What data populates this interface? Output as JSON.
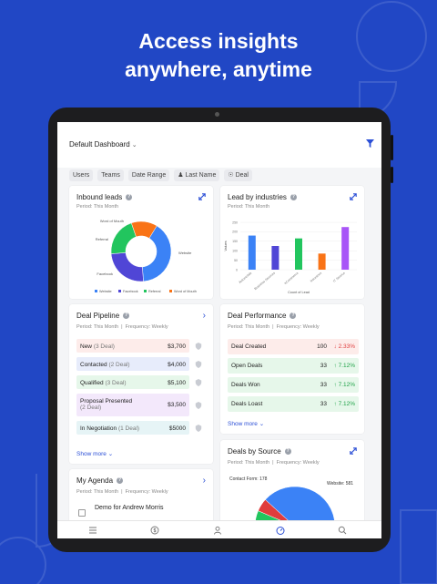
{
  "headline": {
    "line1": "Access insights",
    "line2": "anywhere, anytime"
  },
  "colors": {
    "background": "#2147c5",
    "accent": "#2b4fd6",
    "website": "#3b82f6",
    "facebook": "#5046d6",
    "referral": "#22c55e",
    "word_of_mouth": "#f97316",
    "bar_purple": "#a855f7"
  },
  "dashboard": {
    "title": "Default Dashboard",
    "filters": [
      "Users",
      "Teams",
      "Date Range",
      "Last Name",
      "Deal"
    ]
  },
  "inbound": {
    "title": "Inbound leads",
    "period": "Period: This Month",
    "slice_labels": [
      "Word of Mouth",
      "Referral",
      "Facebook",
      "Website"
    ],
    "legend": [
      "Website",
      "Facebook",
      "Referral",
      "Word of Mouth"
    ]
  },
  "industries": {
    "title": "Lead by industries",
    "period": "Period: This Month",
    "ylabel": "Values",
    "xlabel": "Count of Lead"
  },
  "pipeline": {
    "title": "Deal Pipeline",
    "period": "Period: This Month",
    "frequency": "Frequency: Weekly",
    "rows": [
      {
        "label": "New",
        "count": "(3 Deal)",
        "amount": "$3,700"
      },
      {
        "label": "Contacted",
        "count": "(2 Deal)",
        "amount": "$4,000"
      },
      {
        "label": "Qualified",
        "count": "(3 Deal)",
        "amount": "$5,100"
      },
      {
        "label": "Proposal Presented",
        "count": "(2 Deal)",
        "amount": "$3,500"
      },
      {
        "label": "In Negotiation",
        "count": "(1 Deal)",
        "amount": "$5000"
      }
    ],
    "show_more": "Show more"
  },
  "performance": {
    "title": "Deal Performance",
    "period": "Period: This Month",
    "frequency": "Frequency: Weekly",
    "rows": [
      {
        "label": "Deal Created",
        "value": "100",
        "change": "2.33%",
        "direction": "down"
      },
      {
        "label": "Open Deals",
        "value": "33",
        "change": "7.12%",
        "direction": "up"
      },
      {
        "label": "Deals Won",
        "value": "33",
        "change": "7.12%",
        "direction": "up"
      },
      {
        "label": "Deals Loast",
        "value": "33",
        "change": "7.12%",
        "direction": "up"
      }
    ],
    "show_more": "Show more"
  },
  "agenda": {
    "title": "My Agenda",
    "period": "Period: This Month",
    "frequency": "Frequency: Weekly",
    "item": "Demo for Andrew Morris"
  },
  "source": {
    "title": "Deals by Source",
    "period": "Period: This Month",
    "frequency": "Frequency: Weekly",
    "labels": {
      "contact_form": "Contact Form: 178",
      "website": "Website: 581"
    }
  },
  "chart_data": [
    {
      "type": "pie",
      "title": "Inbound leads",
      "categories": [
        "Website",
        "Facebook",
        "Referral",
        "Word of Mouth"
      ],
      "values": [
        40,
        25,
        21,
        14
      ]
    },
    {
      "type": "bar",
      "title": "Lead by industries",
      "ylabel": "Values",
      "xlabel": "Count of Lead",
      "categories": [
        "Automobile",
        "Business Services",
        "eCommerce",
        "Insurance",
        "IT Service"
      ],
      "values": [
        180,
        125,
        165,
        85,
        225
      ],
      "ylim": [
        0,
        250
      ],
      "yticks": [
        0,
        50,
        100,
        150,
        200,
        250
      ],
      "colors": [
        "#3b82f6",
        "#5046d6",
        "#22c55e",
        "#f97316",
        "#a855f7"
      ]
    },
    {
      "type": "pie",
      "title": "Deals by Source",
      "categories": [
        "Contact Form",
        "Website"
      ],
      "values": [
        178,
        581
      ]
    }
  ]
}
